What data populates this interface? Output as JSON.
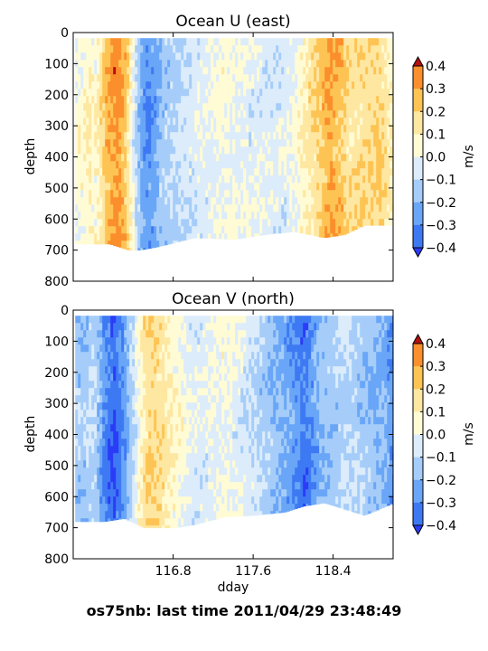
{
  "caption": "os75nb: last time 2011/04/29 23:48:49",
  "colors": {
    "levels": [
      "#2b3cf7",
      "#3e79f4",
      "#6aa6f7",
      "#a6cdf9",
      "#dcecfb",
      "#fffbd4",
      "#fee7a1",
      "#fdc454",
      "#fb8f2c",
      "#ea4716",
      "#b5100e"
    ],
    "frame": "#000000",
    "nodata": "#ffffff"
  },
  "chart_data": [
    {
      "type": "heatmap",
      "title": "Ocean U (east)",
      "xlabel": "",
      "ylabel": "depth",
      "x_ticks": [],
      "y_ticks": [
        "0",
        "100",
        "200",
        "300",
        "400",
        "500",
        "600",
        "700",
        "800"
      ],
      "xlim": [
        115.8,
        119.0
      ],
      "ylim": [
        800,
        0
      ],
      "colorbar": {
        "label": "m/s",
        "levels": [
          -0.4,
          -0.3,
          -0.2,
          -0.1,
          0.0,
          0.1,
          0.2,
          0.3,
          0.4
        ],
        "tick_labels": [
          "0.4",
          "0.3",
          "0.2",
          "0.1",
          "0.0",
          "−0.1",
          "−0.2",
          "−0.3",
          "−0.4"
        ],
        "extend": "both"
      },
      "bottom_depth_profile": {
        "x": [
          115.82,
          116.05,
          116.15,
          116.35,
          116.45,
          116.62,
          116.75,
          117.0,
          117.4,
          117.7,
          118.0,
          118.3,
          118.5,
          118.7,
          119.0
        ],
        "depth": [
          680,
          680,
          680,
          700,
          700,
          690,
          680,
          660,
          665,
          650,
          640,
          660,
          650,
          620,
          620
        ]
      },
      "features": [
        {
          "x": [
            115.88,
            115.95,
            116.0,
            116.05
          ],
          "value": [
            0.05,
            0.1,
            0.05,
            0.1
          ]
        },
        {
          "x": [
            116.12,
            116.22,
            116.3
          ],
          "value": [
            0.25,
            0.35,
            0.25
          ]
        },
        {
          "x": [
            116.45,
            116.52,
            116.6,
            116.68
          ],
          "value": [
            -0.2,
            -0.3,
            -0.25,
            -0.15
          ]
        },
        {
          "x": [
            117.0,
            117.3,
            117.6,
            117.9
          ],
          "value": [
            -0.05,
            0.02,
            -0.03,
            -0.05
          ]
        },
        {
          "x": [
            118.25,
            118.35,
            118.45,
            118.55
          ],
          "value": [
            0.2,
            0.3,
            0.25,
            0.15
          ]
        },
        {
          "x": [
            118.85,
            118.95
          ],
          "value": [
            0.2,
            0.1
          ]
        }
      ]
    },
    {
      "type": "heatmap",
      "title": "Ocean V (north)",
      "xlabel": "dday",
      "ylabel": "depth",
      "x_ticks": [
        "116.8",
        "117.6",
        "118.4"
      ],
      "x_tick_values": [
        116.8,
        117.6,
        118.4
      ],
      "y_ticks": [
        "0",
        "100",
        "200",
        "300",
        "400",
        "500",
        "600",
        "700",
        "800"
      ],
      "xlim": [
        115.8,
        119.0
      ],
      "ylim": [
        800,
        0
      ],
      "colorbar": {
        "label": "m/s",
        "levels": [
          -0.4,
          -0.3,
          -0.2,
          -0.1,
          0.0,
          0.1,
          0.2,
          0.3,
          0.4
        ],
        "tick_labels": [
          "0.4",
          "0.3",
          "0.2",
          "0.1",
          "0.0",
          "−0.1",
          "−0.2",
          "−0.3",
          "−0.4"
        ],
        "extend": "both"
      },
      "bottom_depth_profile": {
        "x": [
          115.82,
          116.1,
          116.3,
          116.5,
          116.8,
          117.0,
          117.3,
          117.6,
          117.9,
          118.1,
          118.3,
          118.5,
          118.7,
          119.0
        ],
        "depth": [
          680,
          680,
          670,
          700,
          700,
          690,
          665,
          660,
          650,
          630,
          620,
          640,
          660,
          620
        ]
      },
      "features": [
        {
          "x": [
            115.9,
            116.0
          ],
          "value": [
            -0.15,
            -0.1
          ]
        },
        {
          "x": [
            116.1,
            116.2,
            116.28
          ],
          "value": [
            -0.3,
            -0.4,
            -0.3
          ]
        },
        {
          "x": [
            116.5,
            116.6,
            116.75
          ],
          "value": [
            0.15,
            0.2,
            0.1
          ]
        },
        {
          "x": [
            117.0,
            117.3,
            117.5
          ],
          "value": [
            -0.05,
            0.02,
            -0.05
          ]
        },
        {
          "x": [
            117.95,
            118.1,
            118.25
          ],
          "value": [
            -0.25,
            -0.35,
            -0.2
          ]
        },
        {
          "x": [
            118.5,
            118.7,
            118.9,
            118.98
          ],
          "value": [
            -0.1,
            -0.15,
            -0.2,
            -0.3
          ]
        }
      ]
    }
  ]
}
